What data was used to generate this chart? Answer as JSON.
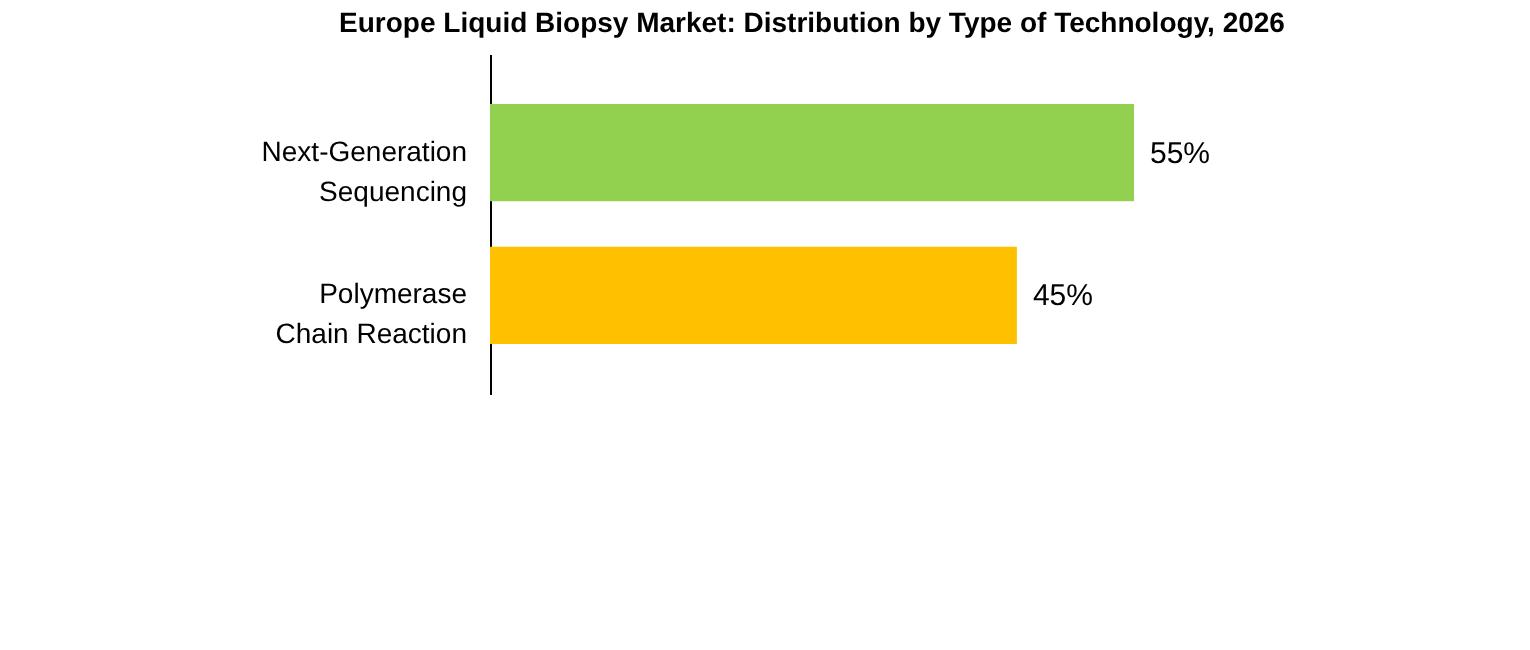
{
  "chart_data": {
    "type": "bar",
    "orientation": "horizontal",
    "title": "Europe Liquid Biopsy Market: Distribution by Type of Technology, 2026",
    "categories": [
      "Next-Generation Sequencing",
      "Polymerase Chain Reaction"
    ],
    "values": [
      55,
      45
    ],
    "colors": [
      "#92d050",
      "#ffc000"
    ],
    "value_labels": [
      "55%",
      "45%"
    ]
  }
}
